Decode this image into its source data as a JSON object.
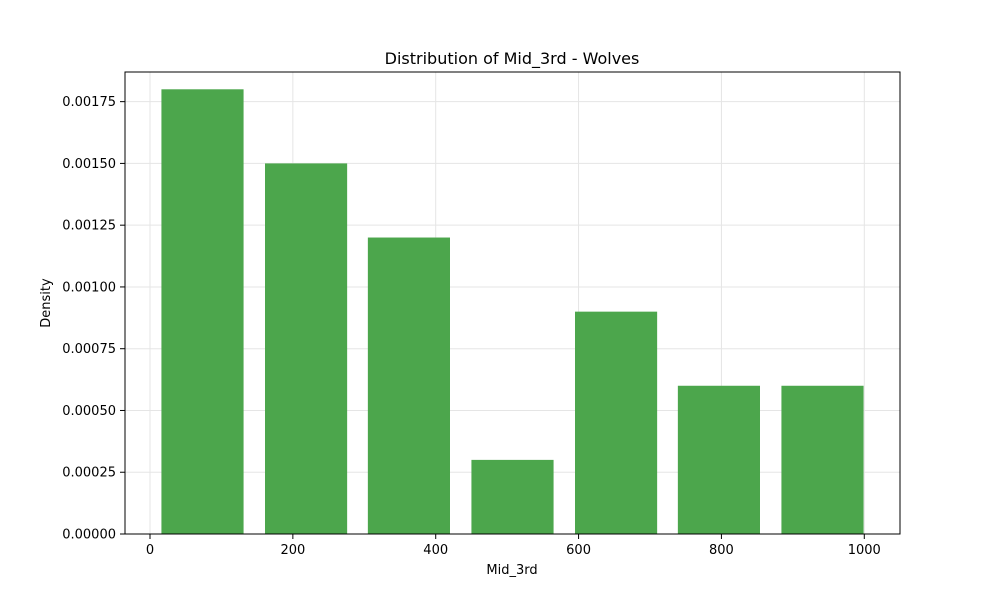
{
  "chart_data": {
    "type": "bar",
    "title": "Distribution of Mid_3rd - Wolves",
    "xlabel": "Mid_3rd",
    "ylabel": "Density",
    "bins": [
      {
        "start": 16,
        "end": 131,
        "value": 0.0018
      },
      {
        "start": 161,
        "end": 276,
        "value": 0.0015
      },
      {
        "start": 305,
        "end": 420,
        "value": 0.0012
      },
      {
        "start": 450,
        "end": 565,
        "value": 0.0003
      },
      {
        "start": 595,
        "end": 710,
        "value": 0.0009
      },
      {
        "start": 739,
        "end": 854,
        "value": 0.0006
      },
      {
        "start": 884,
        "end": 999,
        "value": 0.0006
      }
    ],
    "xlim": [
      -35,
      1050
    ],
    "ylim": [
      0,
      0.00187
    ],
    "xticks": [
      0,
      200,
      400,
      600,
      800,
      1000
    ],
    "xtick_labels": [
      "0",
      "200",
      "400",
      "600",
      "800",
      "1000"
    ],
    "yticks": [
      0,
      0.00025,
      0.0005,
      0.00075,
      0.001,
      0.00125,
      0.0015,
      0.00175
    ],
    "ytick_labels": [
      "0.00000",
      "0.00025",
      "0.00050",
      "0.00075",
      "0.00100",
      "0.00125",
      "0.00150",
      "0.00175"
    ],
    "grid": true,
    "colors": {
      "bar": "#4ca64c",
      "grid": "#e5e5e5",
      "axis": "#000000"
    }
  }
}
